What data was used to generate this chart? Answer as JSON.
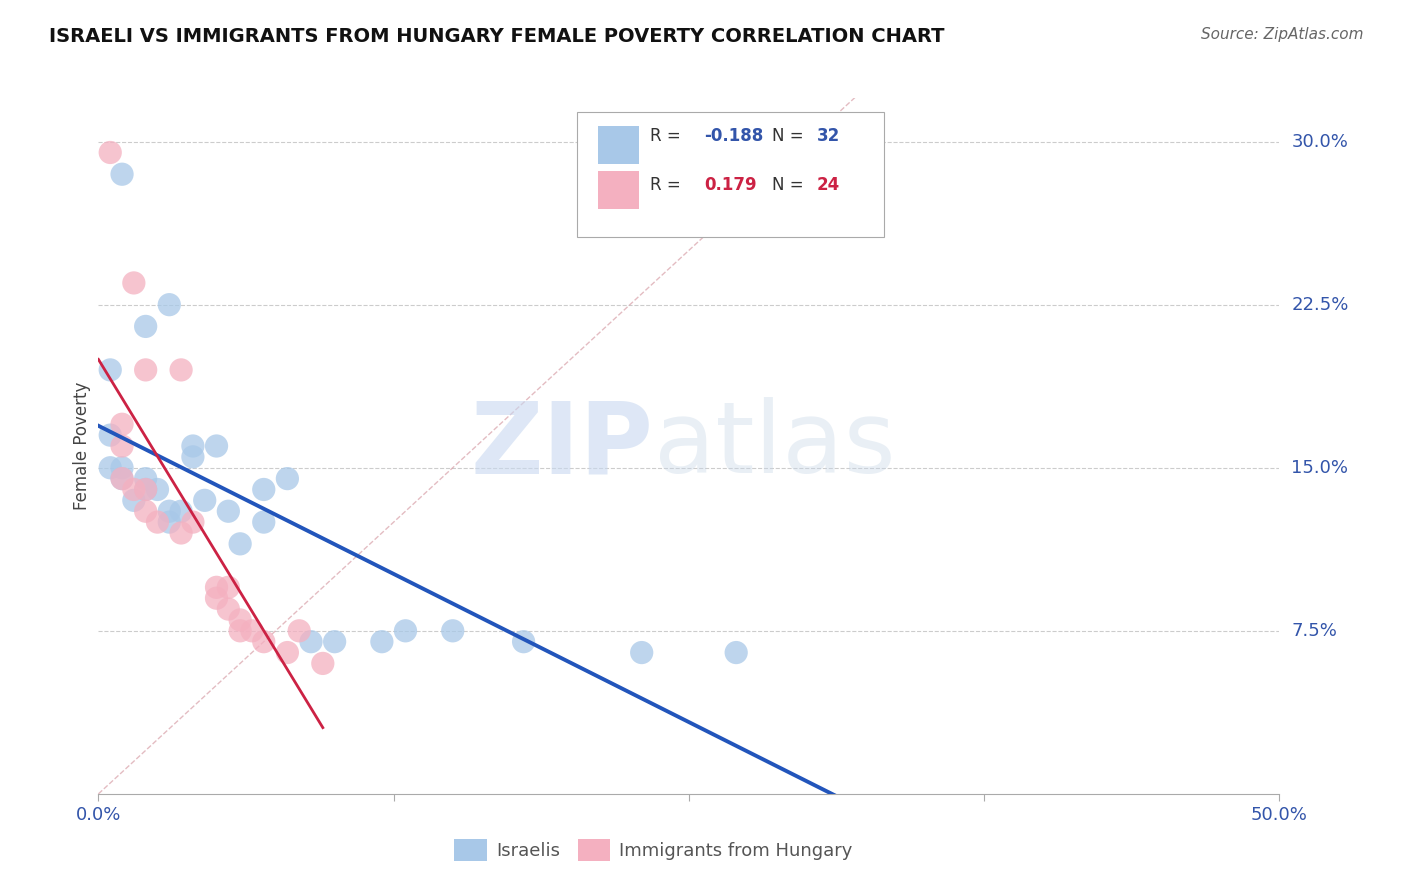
{
  "title": "ISRAELI VS IMMIGRANTS FROM HUNGARY FEMALE POVERTY CORRELATION CHART",
  "source": "Source: ZipAtlas.com",
  "ylabel": "Female Poverty",
  "xlim": [
    0.0,
    0.5
  ],
  "ylim": [
    0.0,
    0.32
  ],
  "ytick_labels_right": [
    "30.0%",
    "22.5%",
    "15.0%",
    "7.5%"
  ],
  "ytick_positions_right": [
    0.3,
    0.225,
    0.15,
    0.075
  ],
  "israeli_color": "#a8c8e8",
  "hungarian_color": "#f4b0c0",
  "israeli_line_color": "#2255bb",
  "hungarian_line_color": "#cc2244",
  "diagonal_color": "#d8a0a8",
  "R_israeli": -0.188,
  "N_israeli": 32,
  "R_hungarian": 0.179,
  "N_hungarian": 24,
  "israeli_x": [
    0.01,
    0.02,
    0.03,
    0.04,
    0.005,
    0.005,
    0.005,
    0.01,
    0.01,
    0.015,
    0.02,
    0.02,
    0.025,
    0.03,
    0.03,
    0.035,
    0.04,
    0.045,
    0.05,
    0.055,
    0.06,
    0.07,
    0.07,
    0.08,
    0.09,
    0.1,
    0.12,
    0.13,
    0.15,
    0.18,
    0.23,
    0.27
  ],
  "israeli_y": [
    0.285,
    0.215,
    0.225,
    0.16,
    0.195,
    0.165,
    0.15,
    0.15,
    0.145,
    0.135,
    0.145,
    0.14,
    0.14,
    0.125,
    0.13,
    0.13,
    0.155,
    0.135,
    0.16,
    0.13,
    0.115,
    0.125,
    0.14,
    0.145,
    0.07,
    0.07,
    0.07,
    0.075,
    0.075,
    0.07,
    0.065,
    0.065
  ],
  "hungarian_x": [
    0.005,
    0.015,
    0.02,
    0.035,
    0.01,
    0.01,
    0.01,
    0.015,
    0.02,
    0.02,
    0.025,
    0.035,
    0.04,
    0.05,
    0.05,
    0.055,
    0.055,
    0.06,
    0.06,
    0.065,
    0.07,
    0.08,
    0.085,
    0.095
  ],
  "hungarian_y": [
    0.295,
    0.235,
    0.195,
    0.195,
    0.17,
    0.16,
    0.145,
    0.14,
    0.14,
    0.13,
    0.125,
    0.12,
    0.125,
    0.095,
    0.09,
    0.095,
    0.085,
    0.08,
    0.075,
    0.075,
    0.07,
    0.065,
    0.075,
    0.06
  ],
  "watermark_zip": "ZIP",
  "watermark_atlas": "atlas",
  "israeli_line_x": [
    0.0,
    0.5
  ],
  "hungarian_line_x": [
    0.0,
    0.095
  ]
}
